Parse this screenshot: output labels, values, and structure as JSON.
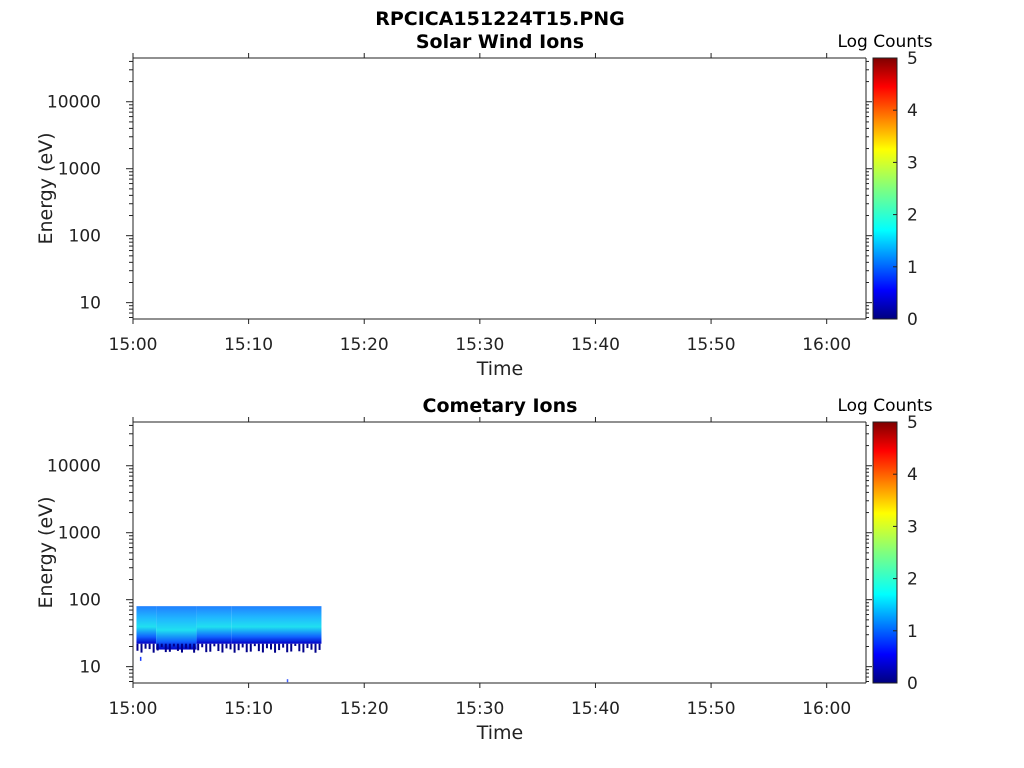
{
  "figure_title": "RPCICA151224T15.PNG",
  "chart_data": [
    {
      "type": "heatmap",
      "title": "Solar Wind Ions",
      "xlabel": "Time",
      "ylabel": "Energy (eV)",
      "x_ticks": [
        "15:00",
        "15:10",
        "15:20",
        "15:30",
        "15:40",
        "15:50",
        "16:00"
      ],
      "y_ticks": [
        "10",
        "100",
        "1000",
        "10000"
      ],
      "y_scale": "log",
      "colorbar": {
        "label": "Log Counts",
        "ticks": [
          "0",
          "1",
          "2",
          "3",
          "4",
          "5"
        ],
        "range": [
          0,
          5
        ],
        "colormap": "jet"
      },
      "data": []
    },
    {
      "type": "heatmap",
      "title": "Cometary Ions",
      "xlabel": "Time",
      "ylabel": "Energy (eV)",
      "x_ticks": [
        "15:00",
        "15:10",
        "15:20",
        "15:30",
        "15:40",
        "15:50",
        "16:00"
      ],
      "y_ticks": [
        "10",
        "100",
        "1000",
        "10000"
      ],
      "y_scale": "log",
      "colorbar": {
        "label": "Log Counts",
        "ticks": [
          "0",
          "1",
          "2",
          "3",
          "4",
          "5"
        ],
        "range": [
          0,
          5
        ],
        "colormap": "jet"
      },
      "data": [
        {
          "time_min": [
            0.3,
            2.0
          ],
          "energy_ev": [
            22,
            80
          ],
          "log_counts": 1.4
        },
        {
          "time_min": [
            2.0,
            5.5
          ],
          "energy_ev": [
            18,
            80
          ],
          "log_counts": 0.9
        },
        {
          "time_min": [
            5.5,
            8.5
          ],
          "energy_ev": [
            22,
            80
          ],
          "log_counts": 1.5
        },
        {
          "time_min": [
            8.5,
            16.3
          ],
          "energy_ev": [
            22,
            80
          ],
          "log_counts": 1.8
        }
      ]
    }
  ]
}
